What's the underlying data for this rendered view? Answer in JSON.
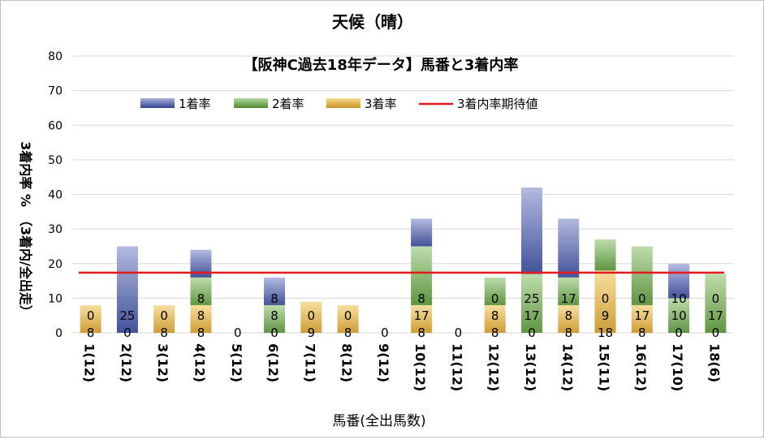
{
  "chart_data": {
    "type": "bar",
    "stacked": true,
    "title": "天候（晴）",
    "subtitle": "【阪神C過去18年データ】馬番と3着内率",
    "xlabel": "馬番(全出馬数)",
    "ylabel": "3着内率 %　（3着内/全出走）",
    "ylim": [
      0,
      80
    ],
    "yticks": [
      0,
      10,
      20,
      30,
      40,
      50,
      60,
      70,
      80
    ],
    "grid": true,
    "legend_position": "top",
    "categories": [
      "1(12)",
      "2(12)",
      "3(12)",
      "4(12)",
      "5(12)",
      "6(12)",
      "7(11)",
      "8(12)",
      "9(12)",
      "10(12)",
      "11(12)",
      "12(12)",
      "13(12)",
      "14(12)",
      "15(11)",
      "16(12)",
      "17(10)",
      "18(6)"
    ],
    "series": [
      {
        "name": "1着率",
        "color": "#2f3f8f",
        "values": [
          0,
          25,
          0,
          8,
          0,
          8,
          0,
          0,
          0,
          8,
          0,
          0,
          25,
          17,
          0,
          0,
          10,
          0
        ]
      },
      {
        "name": "2着率",
        "color": "#4e8a2e",
        "values": [
          0,
          0,
          0,
          8,
          0,
          8,
          0,
          0,
          0,
          17,
          0,
          8,
          17,
          8,
          9,
          17,
          10,
          17
        ]
      },
      {
        "name": "3着率",
        "color": "#c9921e",
        "values": [
          8,
          0,
          8,
          8,
          0,
          0,
          9,
          8,
          0,
          8,
          0,
          8,
          0,
          8,
          18,
          8,
          0,
          0
        ]
      }
    ],
    "bar_labels": [
      {
        "index": 0,
        "lines": [
          "0",
          "8"
        ]
      },
      {
        "index": 1,
        "lines": [
          "25",
          "0"
        ]
      },
      {
        "index": 2,
        "lines": [
          "0",
          "8"
        ]
      },
      {
        "index": 3,
        "lines": [
          "8",
          "8",
          "8"
        ]
      },
      {
        "index": 4,
        "lines": [
          "0"
        ]
      },
      {
        "index": 5,
        "lines": [
          "8",
          "8",
          "0"
        ]
      },
      {
        "index": 6,
        "lines": [
          "0",
          "9"
        ]
      },
      {
        "index": 7,
        "lines": [
          "0",
          "8"
        ]
      },
      {
        "index": 8,
        "lines": [
          "0"
        ]
      },
      {
        "index": 9,
        "lines": [
          "8",
          "17",
          "8"
        ]
      },
      {
        "index": 10,
        "lines": [
          "0"
        ]
      },
      {
        "index": 11,
        "lines": [
          "0",
          "8",
          "8"
        ]
      },
      {
        "index": 12,
        "lines": [
          "25",
          "17",
          "0"
        ]
      },
      {
        "index": 13,
        "lines": [
          "17",
          "8",
          "8"
        ]
      },
      {
        "index": 14,
        "lines": [
          "0",
          "9",
          "18"
        ]
      },
      {
        "index": 15,
        "lines": [
          "0",
          "17",
          "8"
        ]
      },
      {
        "index": 16,
        "lines": [
          "10",
          "10",
          "0"
        ]
      },
      {
        "index": 17,
        "lines": [
          "0",
          "17",
          "0"
        ]
      }
    ],
    "reference_line": {
      "name": "3着内率期待値",
      "value": 17.4,
      "color": "#e31a1c"
    }
  }
}
